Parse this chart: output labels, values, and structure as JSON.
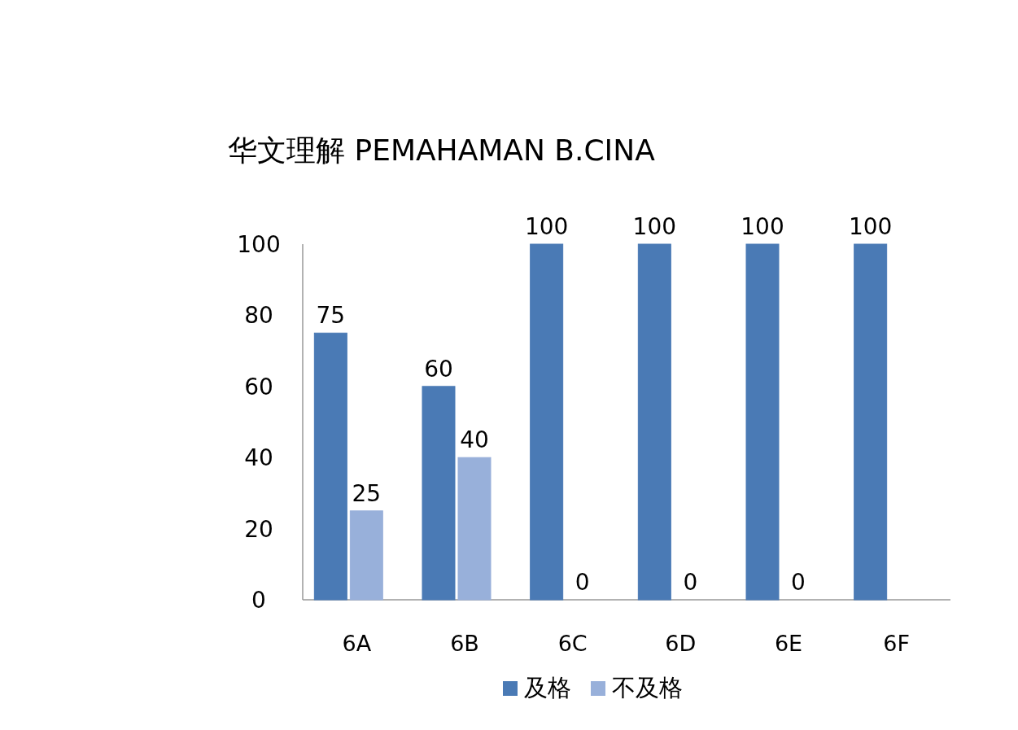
{
  "chart_data": {
    "type": "bar",
    "title": "华文理解 PEMAHAMAN B.CINA",
    "categories": [
      "6A",
      "6B",
      "6C",
      "6D",
      "6E",
      "6F"
    ],
    "series": [
      {
        "name": "及格",
        "color": "#4a7ab5",
        "values": [
          75,
          60,
          100,
          100,
          100,
          100
        ]
      },
      {
        "name": "不及格",
        "color": "#98b0da",
        "values": [
          25,
          40,
          0,
          0,
          0,
          null
        ]
      }
    ],
    "ylim": [
      0,
      100
    ],
    "yticks": [
      0,
      20,
      40,
      60,
      80,
      100
    ],
    "data_labels": true,
    "legend": "bottom",
    "grid": false
  }
}
